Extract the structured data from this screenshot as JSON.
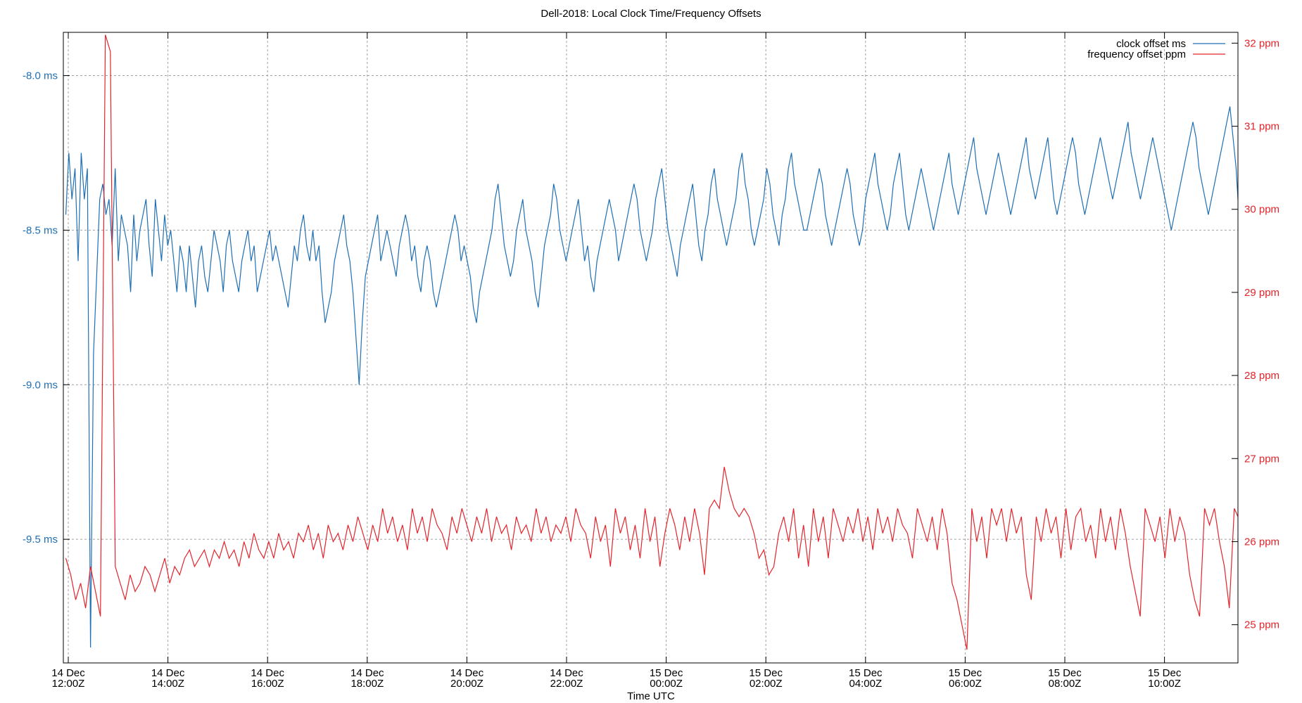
{
  "chart_data": {
    "type": "line",
    "title": "Dell-2018: Local Clock Time/Frequency Offsets",
    "xlabel": "Time UTC",
    "ylabel_left": "",
    "ylabel_right": "",
    "grid": true,
    "legend_position": "top-right inside",
    "x_ticks": [
      {
        "line1": "14 Dec",
        "line2": "12:00Z",
        "hour": 0
      },
      {
        "line1": "14 Dec",
        "line2": "14:00Z",
        "hour": 2
      },
      {
        "line1": "14 Dec",
        "line2": "16:00Z",
        "hour": 4
      },
      {
        "line1": "14 Dec",
        "line2": "18:00Z",
        "hour": 6
      },
      {
        "line1": "14 Dec",
        "line2": "20:00Z",
        "hour": 8
      },
      {
        "line1": "14 Dec",
        "line2": "22:00Z",
        "hour": 10
      },
      {
        "line1": "15 Dec",
        "line2": "00:00Z",
        "hour": 12
      },
      {
        "line1": "15 Dec",
        "line2": "02:00Z",
        "hour": 14
      },
      {
        "line1": "15 Dec",
        "line2": "04:00Z",
        "hour": 16
      },
      {
        "line1": "15 Dec",
        "line2": "06:00Z",
        "hour": 18
      },
      {
        "line1": "15 Dec",
        "line2": "08:00Z",
        "hour": 20
      },
      {
        "line1": "15 Dec",
        "line2": "10:00Z",
        "hour": 22
      }
    ],
    "xlim_hours": [
      -0.1,
      23.5
    ],
    "y_left": {
      "ticks": [
        {
          "value": -8.0,
          "label": "-8.0 ms"
        },
        {
          "value": -8.5,
          "label": "-8.5 ms"
        },
        {
          "value": -9.0,
          "label": "-9.0 ms"
        },
        {
          "value": -9.5,
          "label": "-9.5 ms"
        }
      ],
      "ylim": [
        -9.9,
        -7.86
      ],
      "color": "#1f6fb4"
    },
    "y_right": {
      "ticks": [
        {
          "value": 32,
          "label": "32 ppm"
        },
        {
          "value": 31,
          "label": "31 ppm"
        },
        {
          "value": 30,
          "label": "30 ppm"
        },
        {
          "value": 29,
          "label": "29 ppm"
        },
        {
          "value": 28,
          "label": "28 ppm"
        },
        {
          "value": 27,
          "label": "27 ppm"
        },
        {
          "value": 26,
          "label": "26 ppm"
        },
        {
          "value": 25,
          "label": "25 ppm"
        }
      ],
      "ylim": [
        24.54,
        32.13
      ],
      "color": "#e3242b"
    },
    "series": [
      {
        "name": "clock offset ms",
        "axis": "left",
        "color": "#1f6fb4",
        "x_hours_start": -0.05,
        "x_hours_step": 0.25,
        "values": [
          -8.45,
          -8.25,
          -8.4,
          -8.3,
          -8.6,
          -8.25,
          -8.4,
          -8.3,
          -9.85,
          -8.9,
          -8.65,
          -8.4,
          -8.35,
          -8.45,
          -8.4,
          -8.55,
          -8.3,
          -8.6,
          -8.45,
          -8.5,
          -8.55,
          -8.7,
          -8.45,
          -8.6,
          -8.5,
          -8.45,
          -8.4,
          -8.55,
          -8.65,
          -8.4,
          -8.5,
          -8.6,
          -8.45,
          -8.55,
          -8.5,
          -8.6,
          -8.7,
          -8.55,
          -8.6,
          -8.7,
          -8.55,
          -8.65,
          -8.75,
          -8.6,
          -8.55,
          -8.65,
          -8.7,
          -8.6,
          -8.5,
          -8.55,
          -8.6,
          -8.7,
          -8.55,
          -8.5,
          -8.6,
          -8.65,
          -8.7,
          -8.6,
          -8.55,
          -8.5,
          -8.6,
          -8.55,
          -8.7,
          -8.65,
          -8.6,
          -8.55,
          -8.5,
          -8.6,
          -8.55,
          -8.6,
          -8.65,
          -8.7,
          -8.75,
          -8.65,
          -8.55,
          -8.6,
          -8.5,
          -8.45,
          -8.55,
          -8.6,
          -8.5,
          -8.6,
          -8.55,
          -8.7,
          -8.8,
          -8.75,
          -8.7,
          -8.6,
          -8.55,
          -8.5,
          -8.45,
          -8.55,
          -8.6,
          -8.7,
          -8.85,
          -9.0,
          -8.8,
          -8.65,
          -8.6,
          -8.55,
          -8.5,
          -8.45,
          -8.6,
          -8.55,
          -8.5,
          -8.55,
          -8.6,
          -8.65,
          -8.55,
          -8.5,
          -8.45,
          -8.5,
          -8.6,
          -8.55,
          -8.65,
          -8.7,
          -8.6,
          -8.55,
          -8.6,
          -8.7,
          -8.75,
          -8.7,
          -8.65,
          -8.6,
          -8.55,
          -8.5,
          -8.45,
          -8.5,
          -8.6,
          -8.55,
          -8.6,
          -8.65,
          -8.75,
          -8.8,
          -8.7,
          -8.65,
          -8.6,
          -8.55,
          -8.5,
          -8.4,
          -8.35,
          -8.45,
          -8.55,
          -8.6,
          -8.65,
          -8.6,
          -8.5,
          -8.45,
          -8.4,
          -8.5,
          -8.55,
          -8.6,
          -8.7,
          -8.75,
          -8.65,
          -8.55,
          -8.5,
          -8.45,
          -8.35,
          -8.4,
          -8.5,
          -8.55,
          -8.6,
          -8.55,
          -8.5,
          -8.45,
          -8.4,
          -8.5,
          -8.6,
          -8.55,
          -8.65,
          -8.7,
          -8.6,
          -8.55,
          -8.5,
          -8.45,
          -8.4,
          -8.45,
          -8.5,
          -8.6,
          -8.55,
          -8.5,
          -8.45,
          -8.4,
          -8.35,
          -8.4,
          -8.5,
          -8.55,
          -8.6,
          -8.55,
          -8.5,
          -8.4,
          -8.35,
          -8.3,
          -8.4,
          -8.5,
          -8.55,
          -8.6,
          -8.65,
          -8.55,
          -8.5,
          -8.45,
          -8.4,
          -8.35,
          -8.45,
          -8.55,
          -8.6,
          -8.5,
          -8.45,
          -8.35,
          -8.3,
          -8.4,
          -8.45,
          -8.5,
          -8.55,
          -8.5,
          -8.45,
          -8.4,
          -8.3,
          -8.25,
          -8.35,
          -8.4,
          -8.5,
          -8.55,
          -8.5,
          -8.45,
          -8.4,
          -8.3,
          -8.35,
          -8.45,
          -8.5,
          -8.55,
          -8.45,
          -8.4,
          -8.3,
          -8.25,
          -8.35,
          -8.4,
          -8.45,
          -8.5,
          -8.5,
          -8.45,
          -8.4,
          -8.35,
          -8.3,
          -8.35,
          -8.45,
          -8.5,
          -8.55,
          -8.5,
          -8.45,
          -8.4,
          -8.35,
          -8.3,
          -8.35,
          -8.45,
          -8.5,
          -8.55,
          -8.5,
          -8.4,
          -8.35,
          -8.3,
          -8.25,
          -8.35,
          -8.4,
          -8.45,
          -8.5,
          -8.45,
          -8.35,
          -8.3,
          -8.25,
          -8.35,
          -8.45,
          -8.5,
          -8.45,
          -8.4,
          -8.35,
          -8.3,
          -8.35,
          -8.4,
          -8.45,
          -8.5,
          -8.45,
          -8.4,
          -8.35,
          -8.3,
          -8.25,
          -8.35,
          -8.4,
          -8.45,
          -8.4,
          -8.35,
          -8.3,
          -8.25,
          -8.2,
          -8.3,
          -8.35,
          -8.4,
          -8.45,
          -8.4,
          -8.35,
          -8.3,
          -8.25,
          -8.3,
          -8.35,
          -8.4,
          -8.45,
          -8.4,
          -8.35,
          -8.3,
          -8.25,
          -8.2,
          -8.3,
          -8.35,
          -8.4,
          -8.35,
          -8.3,
          -8.25,
          -8.2,
          -8.3,
          -8.4,
          -8.45,
          -8.4,
          -8.35,
          -8.3,
          -8.25,
          -8.2,
          -8.25,
          -8.35,
          -8.4,
          -8.45,
          -8.4,
          -8.35,
          -8.3,
          -8.25,
          -8.2,
          -8.25,
          -8.3,
          -8.35,
          -8.4,
          -8.35,
          -8.3,
          -8.25,
          -8.2,
          -8.15,
          -8.25,
          -8.3,
          -8.35,
          -8.4,
          -8.35,
          -8.3,
          -8.25,
          -8.2,
          -8.25,
          -8.3,
          -8.35,
          -8.4,
          -8.45,
          -8.5,
          -8.45,
          -8.4,
          -8.35,
          -8.3,
          -8.25,
          -8.2,
          -8.15,
          -8.2,
          -8.3,
          -8.35,
          -8.4,
          -8.45,
          -8.4,
          -8.35,
          -8.3,
          -8.25,
          -8.2,
          -8.15,
          -8.1,
          -8.2,
          -8.3,
          -8.4
        ]
      },
      {
        "name": "frequency offset ppm",
        "axis": "right",
        "color": "#e3242b",
        "x_hours_start": -0.05,
        "x_hours_step": 0.25,
        "values": [
          25.8,
          25.6,
          25.3,
          25.5,
          25.2,
          25.7,
          25.4,
          25.1,
          32.1,
          31.9,
          25.7,
          25.5,
          25.3,
          25.6,
          25.4,
          25.5,
          25.7,
          25.6,
          25.4,
          25.6,
          25.8,
          25.5,
          25.7,
          25.6,
          25.8,
          25.9,
          25.7,
          25.8,
          25.9,
          25.7,
          25.9,
          25.8,
          26.0,
          25.8,
          25.9,
          25.7,
          26.0,
          25.8,
          26.1,
          25.9,
          25.8,
          26.0,
          25.8,
          26.1,
          25.9,
          26.0,
          25.8,
          26.1,
          26.0,
          26.2,
          25.9,
          26.1,
          25.8,
          26.2,
          26.0,
          26.1,
          25.9,
          26.2,
          26.0,
          26.3,
          26.1,
          25.9,
          26.2,
          26.0,
          26.4,
          26.1,
          26.3,
          26.0,
          26.2,
          25.9,
          26.4,
          26.1,
          26.3,
          26.0,
          26.4,
          26.2,
          26.1,
          25.9,
          26.3,
          26.1,
          26.4,
          26.2,
          26.0,
          26.3,
          26.1,
          26.4,
          26.0,
          26.3,
          26.1,
          26.2,
          25.9,
          26.3,
          26.1,
          26.2,
          26.0,
          26.4,
          26.1,
          26.3,
          26.0,
          26.2,
          26.1,
          26.3,
          26.0,
          26.4,
          26.2,
          26.1,
          25.8,
          26.3,
          26.0,
          26.2,
          25.7,
          26.4,
          26.1,
          26.3,
          25.9,
          26.2,
          25.8,
          26.4,
          26.0,
          26.3,
          25.7,
          26.1,
          26.4,
          26.2,
          25.9,
          26.3,
          26.0,
          26.4,
          26.1,
          25.6,
          26.4,
          26.5,
          26.4,
          26.9,
          26.6,
          26.4,
          26.3,
          26.4,
          26.3,
          26.1,
          25.8,
          25.9,
          25.6,
          25.7,
          26.1,
          26.3,
          26.0,
          26.4,
          25.8,
          26.2,
          25.7,
          26.4,
          26.0,
          26.3,
          25.8,
          26.4,
          26.2,
          26.0,
          26.3,
          26.1,
          26.4,
          26.0,
          26.3,
          25.9,
          26.4,
          26.1,
          26.3,
          26.0,
          26.4,
          26.2,
          26.1,
          25.8,
          26.4,
          26.2,
          26.0,
          26.3,
          25.9,
          26.4,
          26.1,
          25.5,
          25.3,
          25.0,
          24.7,
          26.4,
          26.0,
          26.3,
          25.8,
          26.4,
          26.2,
          26.4,
          26.0,
          26.4,
          26.1,
          26.3,
          25.6,
          25.3,
          26.3,
          26.0,
          26.4,
          26.1,
          26.3,
          25.8,
          26.4,
          25.9,
          26.3,
          26.4,
          26.0,
          26.2,
          25.8,
          26.4,
          26.0,
          26.3,
          25.9,
          26.4,
          26.1,
          25.7,
          25.4,
          25.1,
          26.4,
          26.2,
          26.0,
          26.3,
          25.8,
          26.4,
          26.0,
          26.3,
          26.1,
          25.6,
          25.3,
          25.1,
          26.4,
          26.2,
          26.4,
          26.0,
          25.7,
          25.2,
          26.4,
          26.3
        ]
      }
    ]
  },
  "legend": {
    "items": [
      {
        "label": "clock offset ms",
        "color": "#1f6fb4"
      },
      {
        "label": "frequency offset ppm",
        "color": "#e3242b"
      }
    ]
  }
}
